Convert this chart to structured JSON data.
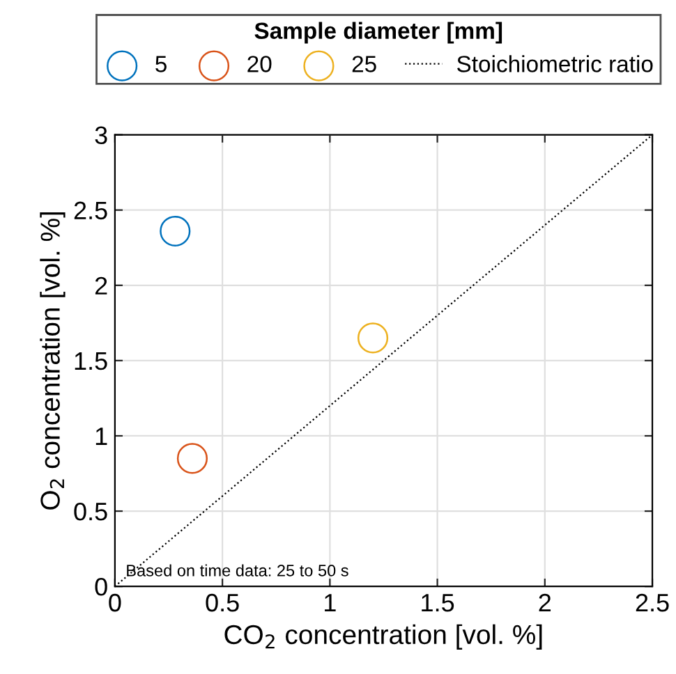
{
  "chart_data": {
    "type": "scatter",
    "xlabel": "CO$_{2}$ concentration [vol. %]",
    "ylabel": "O$_{2}$ concentration [vol. %]",
    "legend_title": "Sample diameter [mm]",
    "legend": "top",
    "grid": true,
    "marker": "circle",
    "xlim": [
      0,
      2.5
    ],
    "ylim": [
      0,
      3
    ],
    "xticks": [
      0,
      0.5,
      1,
      1.5,
      2,
      2.5
    ],
    "yticks": [
      0,
      0.5,
      1,
      1.5,
      2,
      2.5,
      3
    ],
    "series": [
      {
        "name": "5",
        "color": "#0072bd",
        "x": [
          0.28
        ],
        "values": [
          2.36
        ]
      },
      {
        "name": "20",
        "color": "#d95319",
        "x": [
          0.36
        ],
        "values": [
          0.85
        ]
      },
      {
        "name": "25",
        "color": "#edb120",
        "x": [
          1.2
        ],
        "values": [
          1.65
        ]
      },
      {
        "name": "Stoichiometric ratio",
        "type": "line",
        "line_style": "dotted",
        "marker": "none",
        "color": "#000000",
        "x": [
          0,
          2.5
        ],
        "values": [
          0,
          3
        ]
      }
    ],
    "annotations": [
      "Based on time data: 25 to 50 s"
    ]
  }
}
